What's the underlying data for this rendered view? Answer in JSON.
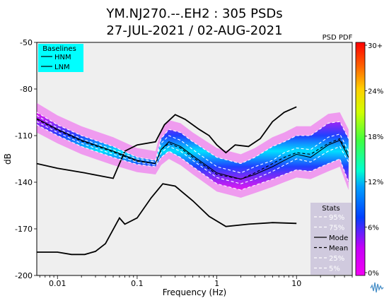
{
  "title_line1": "YM.NJ270.--.EH2 : 305 PSDs",
  "title_line2": "27-JUL-2021 / 02-AUG-2021",
  "chart_data": {
    "type": "line",
    "title": "YM.NJ270.--.EH2 : 305 PSDs",
    "subtitle": "27-JUL-2021 / 02-AUG-2021",
    "xlabel": "Frequency (Hz)",
    "ylabel": "dB",
    "x_scale": "log",
    "xlim": [
      0.0055,
      50
    ],
    "ylim": [
      -200,
      -50
    ],
    "x_ticks": [
      {
        "value": 0.01,
        "label": "0.01"
      },
      {
        "value": 0.1,
        "label": "0.1"
      },
      {
        "value": 1,
        "label": "1"
      },
      {
        "value": 10,
        "label": "10"
      }
    ],
    "y_ticks": [
      -50,
      -80,
      -110,
      -140,
      -170,
      -200
    ],
    "grid": false,
    "background": "#efefef",
    "pdf_colorbar": {
      "label": "PSD PDF",
      "range": [
        0,
        30
      ],
      "ticks": [
        "30+",
        "24%",
        "18%",
        "12%",
        "6%",
        "0%"
      ],
      "colors": [
        "#f400f4",
        "#d000f8",
        "#0040ff",
        "#00c8ff",
        "#00ff70",
        "#c0ff00",
        "#ffd000",
        "#ff6000",
        "#ff0000"
      ]
    },
    "baselines_legend": {
      "title": "Baselines",
      "items": [
        "HNM",
        "LNM"
      ],
      "color": "#00ffff"
    },
    "stats_legend": {
      "title": "Stats",
      "items": [
        "95%",
        "75%",
        "Mode",
        "Mean",
        "25%",
        "5%"
      ],
      "color": "#ccc5dc"
    },
    "series": [
      {
        "name": "HNM",
        "color": "#000000",
        "style": "solid",
        "x": [
          0.0055,
          0.01,
          0.022,
          0.05,
          0.07,
          0.1,
          0.17,
          0.22,
          0.3,
          0.4,
          0.6,
          0.8,
          1.0,
          1.3,
          1.7,
          2.5,
          3.5,
          5.0,
          7.0,
          10.0
        ],
        "y": [
          -128,
          -131,
          -134,
          -137.5,
          -120,
          -116,
          -114,
          -103,
          -96.5,
          -99.5,
          -106,
          -110,
          -116,
          -121,
          -116,
          -117,
          -112,
          -101,
          -95,
          -91.5
        ]
      },
      {
        "name": "LNM",
        "color": "#000000",
        "style": "solid",
        "x": [
          0.0055,
          0.01,
          0.015,
          0.022,
          0.03,
          0.04,
          0.06,
          0.07,
          0.1,
          0.15,
          0.21,
          0.3,
          0.5,
          0.8,
          1.3,
          2.5,
          5.0,
          10.0
        ],
        "y": [
          -185,
          -185,
          -186.5,
          -186.5,
          -184.5,
          -179.5,
          -163,
          -167,
          -163,
          -150,
          -141,
          -142.5,
          -152,
          -162,
          -168.5,
          -167,
          -166,
          -166.5
        ]
      },
      {
        "name": "95%",
        "color": "#ffffff",
        "style": "dashed",
        "x": [
          0.0055,
          0.01,
          0.02,
          0.05,
          0.1,
          0.17,
          0.2,
          0.25,
          0.35,
          0.5,
          1.0,
          2.0,
          3.0,
          5.0,
          7.0,
          10.0,
          15.0,
          25.0,
          35.0,
          45.0
        ],
        "y": [
          -95,
          -103,
          -110,
          -117,
          -124,
          -126,
          -112,
          -106,
          -108,
          -114,
          -124,
          -128,
          -124,
          -117,
          -114,
          -110,
          -110,
          -102,
          -101,
          -112
        ]
      },
      {
        "name": "75%",
        "color": "#ffffff",
        "style": "dashed",
        "x": [
          0.0055,
          0.01,
          0.02,
          0.05,
          0.1,
          0.17,
          0.2,
          0.25,
          0.35,
          0.5,
          1.0,
          2.0,
          3.0,
          5.0,
          7.0,
          10.0,
          15.0,
          25.0,
          35.0,
          45.0
        ],
        "y": [
          -97,
          -105,
          -112,
          -119,
          -125,
          -127,
          -115,
          -110,
          -113,
          -119,
          -130,
          -134,
          -130,
          -126,
          -121,
          -118,
          -119,
          -111,
          -109,
          -120
        ]
      },
      {
        "name": "Mode",
        "color": "#000000",
        "style": "solid",
        "x": [
          0.0055,
          0.01,
          0.02,
          0.05,
          0.1,
          0.17,
          0.2,
          0.25,
          0.35,
          0.5,
          1.0,
          2.0,
          3.0,
          5.0,
          7.0,
          10.0,
          15.0,
          25.0,
          35.0,
          45.0
        ],
        "y": [
          -99,
          -106,
          -113,
          -120,
          -126,
          -128,
          -119,
          -114,
          -117,
          -123,
          -134,
          -138,
          -135,
          -130,
          -126,
          -122,
          -124,
          -116,
          -113,
          -124
        ]
      },
      {
        "name": "Mean",
        "color": "#000000",
        "style": "dashed",
        "x": [
          0.0055,
          0.01,
          0.02,
          0.05,
          0.1,
          0.17,
          0.2,
          0.25,
          0.35,
          0.5,
          1.0,
          2.0,
          3.0,
          5.0,
          7.0,
          10.0,
          15.0,
          25.0,
          35.0,
          45.0
        ],
        "y": [
          -99.5,
          -106.5,
          -113.5,
          -120.5,
          -126.5,
          -128,
          -119,
          -115,
          -118,
          -124,
          -135,
          -138,
          -134,
          -128,
          -124,
          -121,
          -122,
          -115,
          -112,
          -122
        ]
      },
      {
        "name": "25%",
        "color": "#ffffff",
        "style": "dashed",
        "x": [
          0.0055,
          0.01,
          0.02,
          0.05,
          0.1,
          0.17,
          0.2,
          0.25,
          0.35,
          0.5,
          1.0,
          2.0,
          3.0,
          5.0,
          7.0,
          10.0,
          15.0,
          25.0,
          35.0,
          45.0
        ],
        "y": [
          -101,
          -108,
          -115,
          -122,
          -127,
          -129,
          -121,
          -117,
          -120,
          -126,
          -137,
          -141,
          -138,
          -133,
          -129,
          -125,
          -127,
          -120,
          -117,
          -127
        ]
      },
      {
        "name": "5%",
        "color": "#ffffff",
        "style": "dashed",
        "x": [
          0.0055,
          0.01,
          0.02,
          0.05,
          0.1,
          0.17,
          0.2,
          0.25,
          0.35,
          0.5,
          1.0,
          2.0,
          3.0,
          5.0,
          7.0,
          10.0,
          15.0,
          25.0,
          35.0,
          45.0
        ],
        "y": [
          -103,
          -110,
          -117,
          -124,
          -128.5,
          -130,
          -124,
          -120,
          -124,
          -130,
          -141,
          -145,
          -142,
          -138,
          -135,
          -132,
          -133,
          -128,
          -125,
          -140
        ]
      }
    ]
  }
}
